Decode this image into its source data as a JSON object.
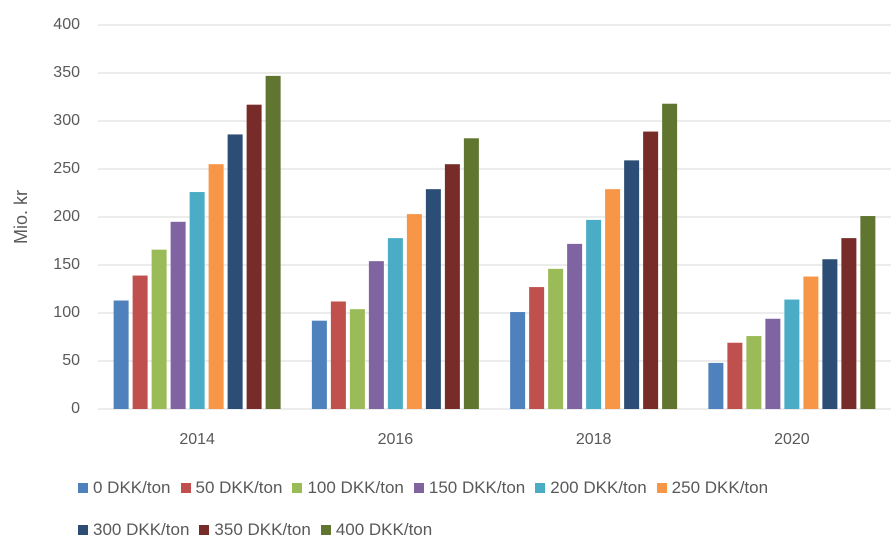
{
  "chart_data": {
    "type": "bar",
    "y_label": "Mio. kr",
    "categories": [
      "2014",
      "2016",
      "2018",
      "2020"
    ],
    "series": [
      {
        "name": "0 DKK/ton",
        "color": "#4f81bd",
        "values": [
          113,
          92,
          101,
          48
        ]
      },
      {
        "name": "50 DKK/ton",
        "color": "#c0504d",
        "values": [
          139,
          112,
          127,
          69
        ]
      },
      {
        "name": "100 DKK/ton",
        "color": "#9bbb59",
        "values": [
          166,
          104,
          146,
          76
        ]
      },
      {
        "name": "150 DKK/ton",
        "color": "#8064a2",
        "values": [
          195,
          154,
          172,
          94
        ]
      },
      {
        "name": "200 DKK/ton",
        "color": "#4bacc6",
        "values": [
          226,
          178,
          197,
          114
        ]
      },
      {
        "name": "250 DKK/ton",
        "color": "#f79646",
        "values": [
          255,
          203,
          229,
          138
        ]
      },
      {
        "name": "300 DKK/ton",
        "color": "#2c4d75",
        "values": [
          286,
          229,
          259,
          156
        ]
      },
      {
        "name": "350 DKK/ton",
        "color": "#772c2a",
        "values": [
          317,
          255,
          289,
          178
        ]
      },
      {
        "name": "400 DKK/ton",
        "color": "#5f7530",
        "values": [
          347,
          282,
          318,
          201
        ]
      }
    ],
    "ylim": [
      0,
      400
    ],
    "yticks": [
      0,
      50,
      100,
      150,
      200,
      250,
      300,
      350,
      400
    ],
    "grid": true,
    "legend": "bottom"
  }
}
